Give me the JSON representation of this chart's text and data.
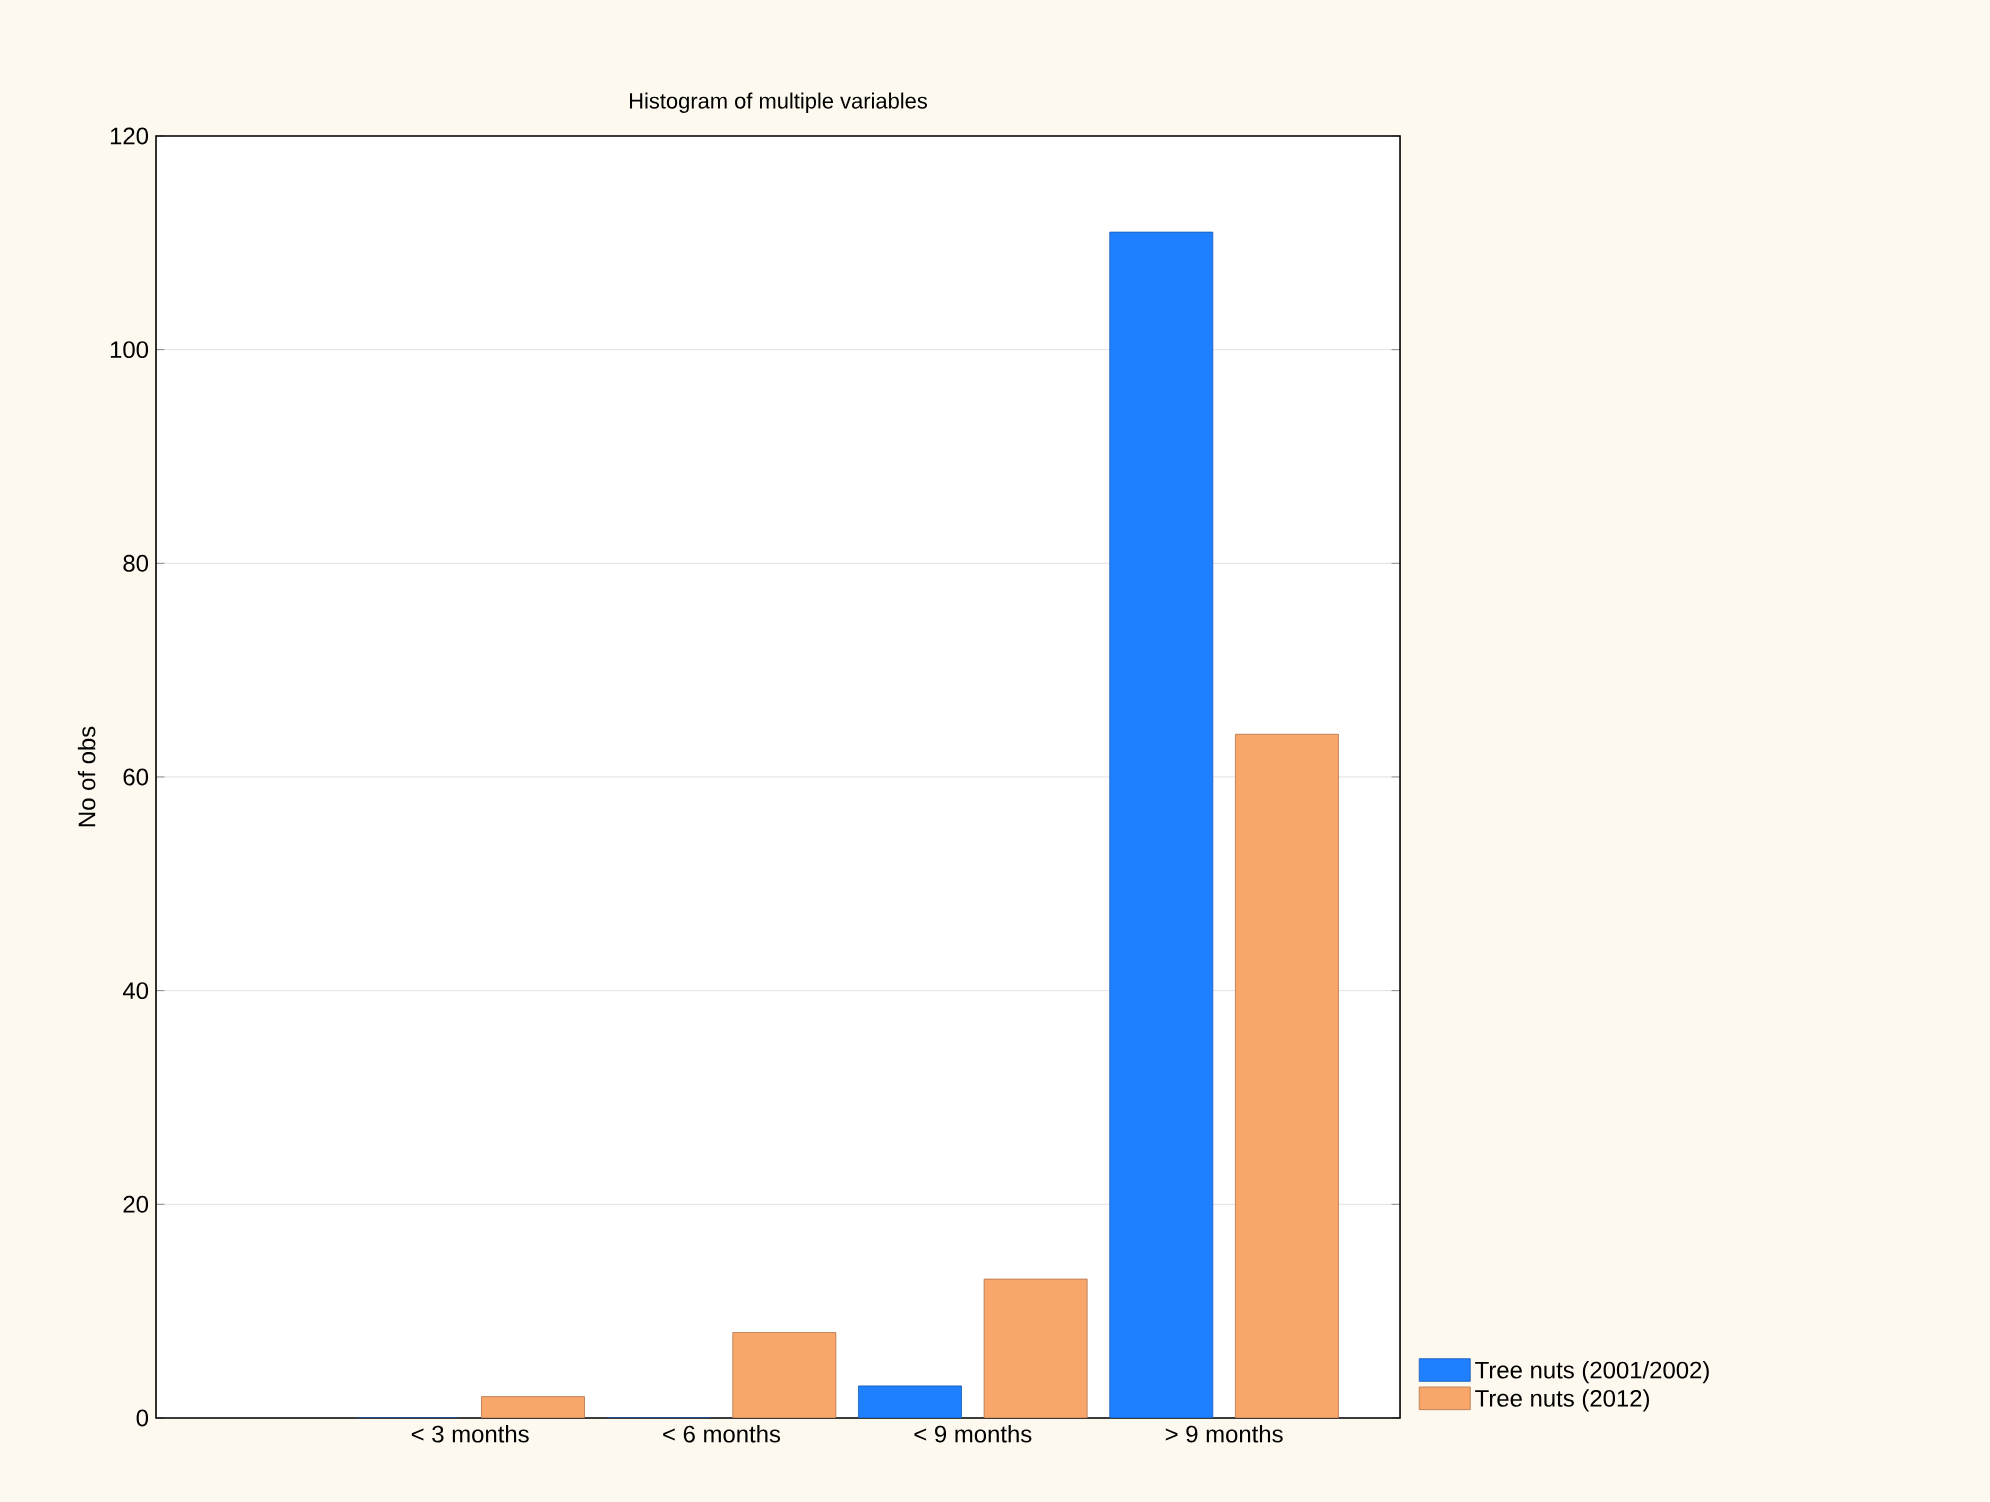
{
  "chart_data": {
    "type": "bar",
    "title": "Histogram of multiple variables",
    "ylabel": "No of obs",
    "categories": [
      "< 3 months",
      "< 6 months",
      "< 9 months",
      "> 9 months"
    ],
    "series": [
      {
        "name": "Tree nuts (2001/2002)",
        "color": "#1e80ff",
        "values": [
          0,
          0,
          3,
          111
        ]
      },
      {
        "name": "Tree nuts (2012)",
        "color": "#f9a66a",
        "values": [
          2,
          8,
          13,
          64
        ]
      }
    ],
    "ylim": [
      0,
      120
    ],
    "yticks": [
      0,
      20,
      40,
      60,
      80,
      100,
      120
    ],
    "grid": "y",
    "legend": "bottom right"
  }
}
